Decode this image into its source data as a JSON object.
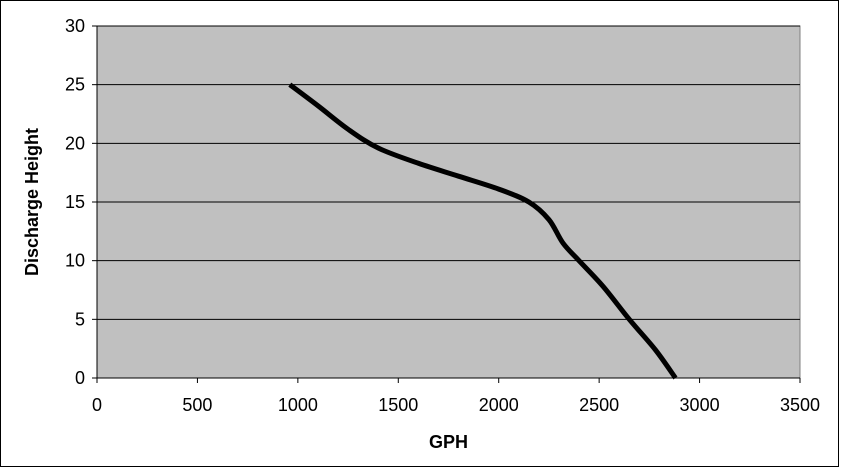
{
  "chart_data": {
    "type": "line",
    "title": "",
    "xlabel": "GPH",
    "ylabel": "Discharge Height",
    "xlim": [
      0,
      3500
    ],
    "ylim": [
      0,
      30
    ],
    "x_ticks": [
      "0",
      "500",
      "1000",
      "1500",
      "2000",
      "2500",
      "3000",
      "3500"
    ],
    "y_ticks": [
      "0",
      "5",
      "10",
      "15",
      "20",
      "25",
      "30"
    ],
    "grid": "horizontal",
    "legend": "none",
    "plot_background": "#c0c0c0",
    "line_color": "#000000",
    "series": [
      {
        "points": [
          {
            "x": 960,
            "y": 25
          },
          {
            "x": 1100,
            "y": 23.2
          },
          {
            "x": 1250,
            "y": 21.2
          },
          {
            "x": 1400,
            "y": 19.6
          },
          {
            "x": 1600,
            "y": 18.3
          },
          {
            "x": 1800,
            "y": 17.2
          },
          {
            "x": 2000,
            "y": 16.1
          },
          {
            "x": 2150,
            "y": 15.0
          },
          {
            "x": 2250,
            "y": 13.5
          },
          {
            "x": 2320,
            "y": 11.5
          },
          {
            "x": 2400,
            "y": 10.0
          },
          {
            "x": 2520,
            "y": 7.8
          },
          {
            "x": 2650,
            "y": 5.0
          },
          {
            "x": 2780,
            "y": 2.4
          },
          {
            "x": 2880,
            "y": 0
          }
        ]
      }
    ]
  }
}
